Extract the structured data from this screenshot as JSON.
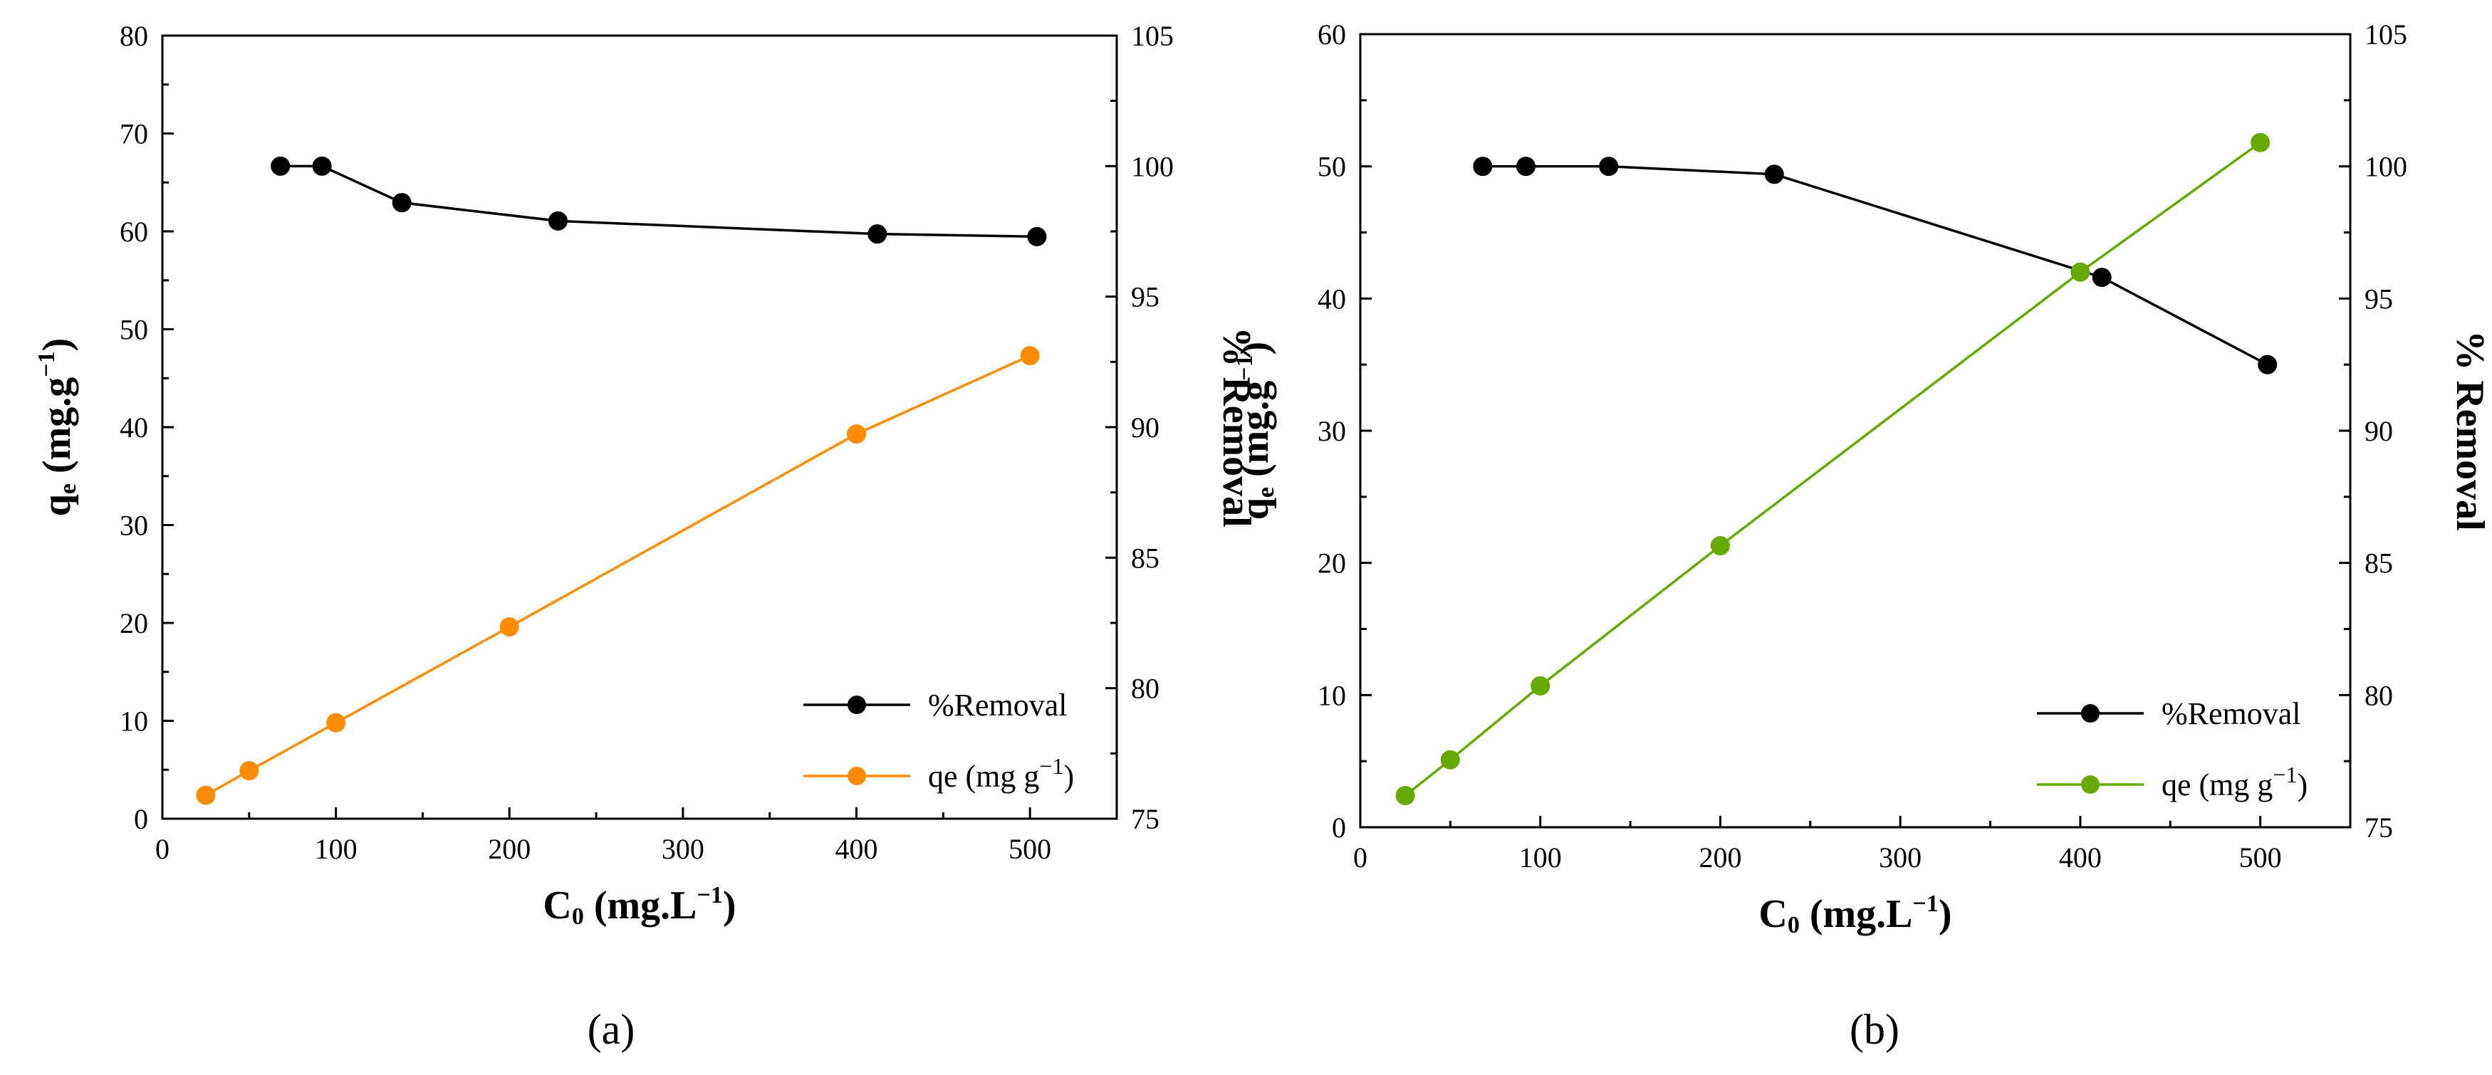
{
  "chart_data": [
    {
      "type": "line",
      "panel_label": "(a)",
      "xlabel": "C",
      "xlabel_sub": "0",
      "xlabel_unit": " (mg.L",
      "xlabel_sup": "−1",
      "xlabel_close": ")",
      "ylabel_left": "q",
      "ylabel_left_sub": "e",
      "ylabel_left_unit": " (mg.g",
      "ylabel_left_sup": "−1",
      "ylabel_left_close": ")",
      "ylabel_right": "% Removal",
      "xlim": [
        0,
        550
      ],
      "ylim_left": [
        0,
        80
      ],
      "ylim_right": [
        75,
        105
      ],
      "x_ticks": [
        0,
        100,
        200,
        300,
        400,
        500
      ],
      "y_left_ticks": [
        0,
        10,
        20,
        30,
        40,
        50,
        60,
        70,
        80
      ],
      "y_right_ticks": [
        75,
        80,
        85,
        90,
        95,
        100,
        105
      ],
      "legend_position": "bottom-right",
      "series": [
        {
          "name": "%Removal",
          "axis": "right",
          "color": "#000000",
          "x": [
            68,
            92,
            138,
            228,
            412,
            504
          ],
          "y": [
            100,
            100,
            98.6,
            97.9,
            97.4,
            97.3
          ]
        },
        {
          "name": "qe (mg g",
          "name_sup": "−1",
          "name_close": ")",
          "axis": "left",
          "color": "#ff8c00",
          "x": [
            25,
            50,
            100,
            200,
            400,
            500
          ],
          "y": [
            2.4,
            4.9,
            9.8,
            19.6,
            39.3,
            47.3
          ]
        }
      ]
    },
    {
      "type": "line",
      "panel_label": "(b)",
      "xlabel": "C",
      "xlabel_sub": "0",
      "xlabel_unit": " (mg.L",
      "xlabel_sup": "−1",
      "xlabel_close": ")",
      "ylabel_left": "q",
      "ylabel_left_sub": "e",
      "ylabel_left_unit": " (mg.g",
      "ylabel_left_sup": "−1",
      "ylabel_left_close": ")",
      "ylabel_right": "% Removal",
      "xlim": [
        0,
        550
      ],
      "ylim_left": [
        0,
        60
      ],
      "ylim_right": [
        75,
        105
      ],
      "x_ticks": [
        0,
        100,
        200,
        300,
        400,
        500
      ],
      "y_left_ticks": [
        0,
        10,
        20,
        30,
        40,
        50,
        60
      ],
      "y_right_ticks": [
        75,
        80,
        85,
        90,
        95,
        100,
        105
      ],
      "legend_position": "bottom-right",
      "series": [
        {
          "name": "%Removal",
          "axis": "right",
          "color": "#000000",
          "x": [
            68,
            92,
            138,
            230,
            412,
            504
          ],
          "y": [
            100,
            100,
            100,
            99.7,
            95.8,
            92.5
          ]
        },
        {
          "name": "qe (mg g",
          "name_sup": "−1",
          "name_close": ")",
          "axis": "left",
          "color": "#66aa00",
          "x": [
            25,
            50,
            100,
            200,
            400,
            500
          ],
          "y": [
            2.4,
            5.1,
            10.7,
            21.3,
            42.0,
            51.8
          ]
        }
      ]
    }
  ]
}
